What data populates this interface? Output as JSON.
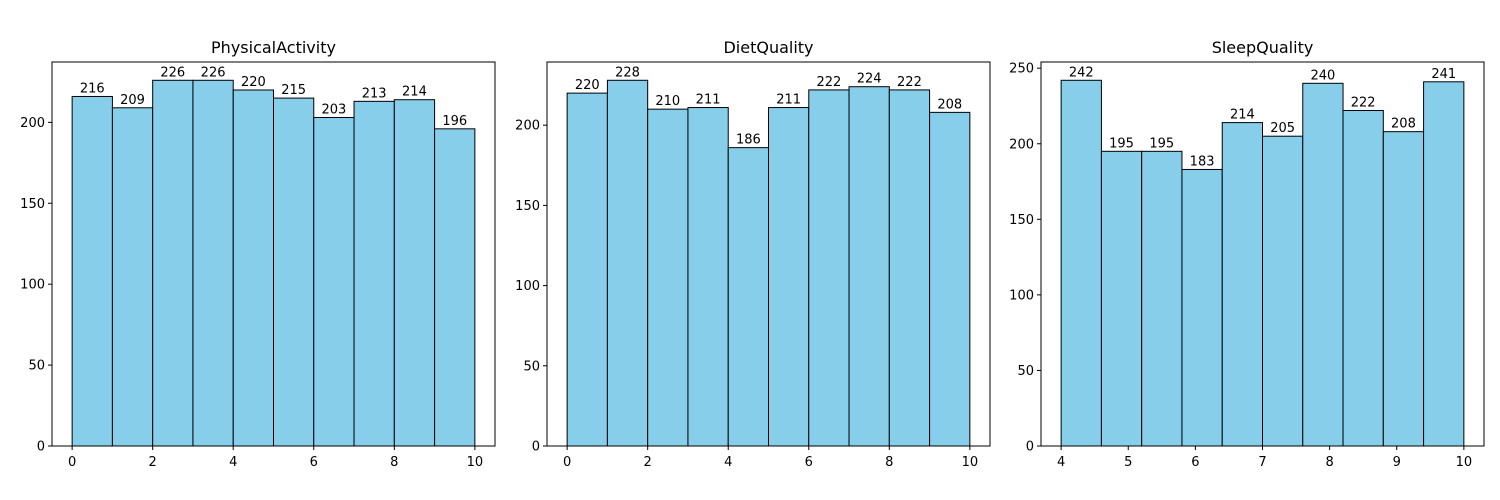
{
  "chart_data": [
    {
      "type": "histogram",
      "title": "PhysicalActivity",
      "bins": [
        0,
        1,
        2,
        3,
        4,
        5,
        6,
        7,
        8,
        9,
        10
      ],
      "values": [
        216,
        209,
        226,
        226,
        220,
        215,
        203,
        213,
        214,
        196
      ],
      "color": "#87ceeb",
      "edgecolor": "#000000",
      "xlim": [
        -0.5,
        10.5
      ],
      "xticks": [
        0,
        2,
        4,
        6,
        8,
        10
      ],
      "ylim": [
        0,
        237.3
      ],
      "yticks": [
        0,
        50,
        100,
        150,
        200
      ],
      "grid": false
    },
    {
      "type": "histogram",
      "title": "DietQuality",
      "bins": [
        0,
        1,
        2,
        3,
        4,
        5,
        6,
        7,
        8,
        9,
        10
      ],
      "values": [
        220,
        228,
        210,
        211,
        186,
        211,
        222,
        224,
        222,
        208
      ],
      "color": "#87ceeb",
      "edgecolor": "#000000",
      "xlim": [
        -0.5,
        10.5
      ],
      "xticks": [
        0,
        2,
        4,
        6,
        8,
        10
      ],
      "ylim": [
        0,
        239.4
      ],
      "yticks": [
        0,
        50,
        100,
        150,
        200
      ],
      "grid": false
    },
    {
      "type": "histogram",
      "title": "SleepQuality",
      "bins": [
        4,
        4.6,
        5.2,
        5.8,
        6.4,
        7,
        7.6,
        8.2,
        8.8,
        9.4,
        10
      ],
      "values": [
        242,
        195,
        195,
        183,
        214,
        205,
        240,
        222,
        208,
        241
      ],
      "color": "#87ceeb",
      "edgecolor": "#000000",
      "xlim": [
        3.7,
        10.3
      ],
      "xticks": [
        4,
        5,
        6,
        7,
        8,
        9,
        10
      ],
      "ylim": [
        0,
        254.1
      ],
      "yticks": [
        0,
        50,
        100,
        150,
        200,
        250
      ],
      "grid": false
    }
  ]
}
